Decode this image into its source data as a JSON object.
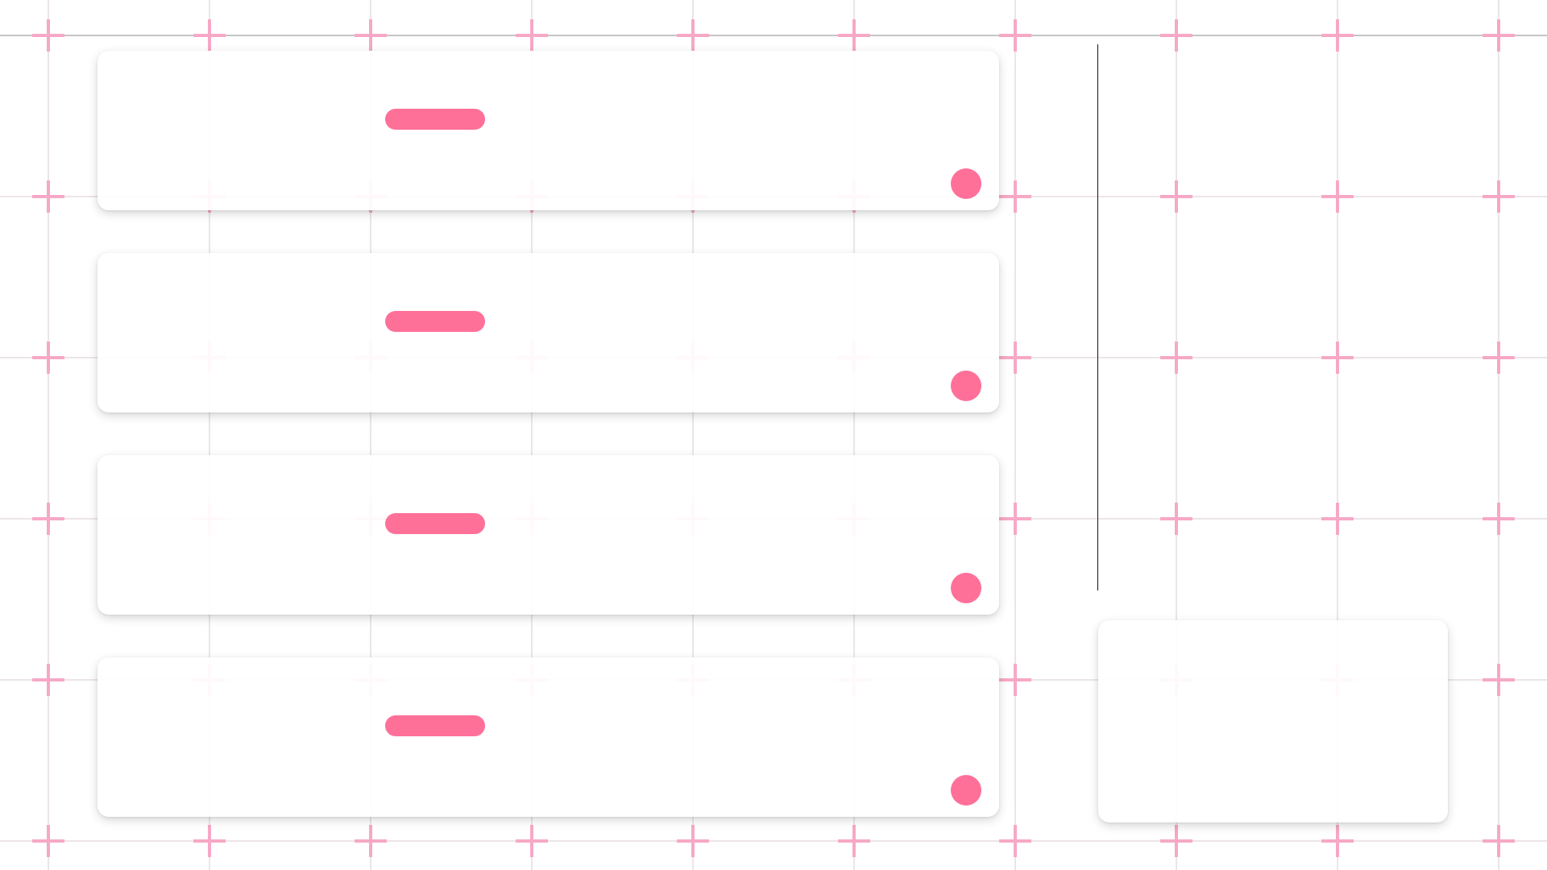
{
  "colors": {
    "accent": "#ff7099",
    "cross": "#f7a8c6",
    "background": "#ffffff",
    "divider": "#111111"
  },
  "cards": [
    {
      "bar_icon": "pill-bar",
      "dot_icon": "circle-dot"
    },
    {
      "bar_icon": "pill-bar",
      "dot_icon": "circle-dot"
    },
    {
      "bar_icon": "pill-bar",
      "dot_icon": "circle-dot"
    },
    {
      "bar_icon": "pill-bar",
      "dot_icon": "circle-dot"
    }
  ],
  "side_panel": {}
}
